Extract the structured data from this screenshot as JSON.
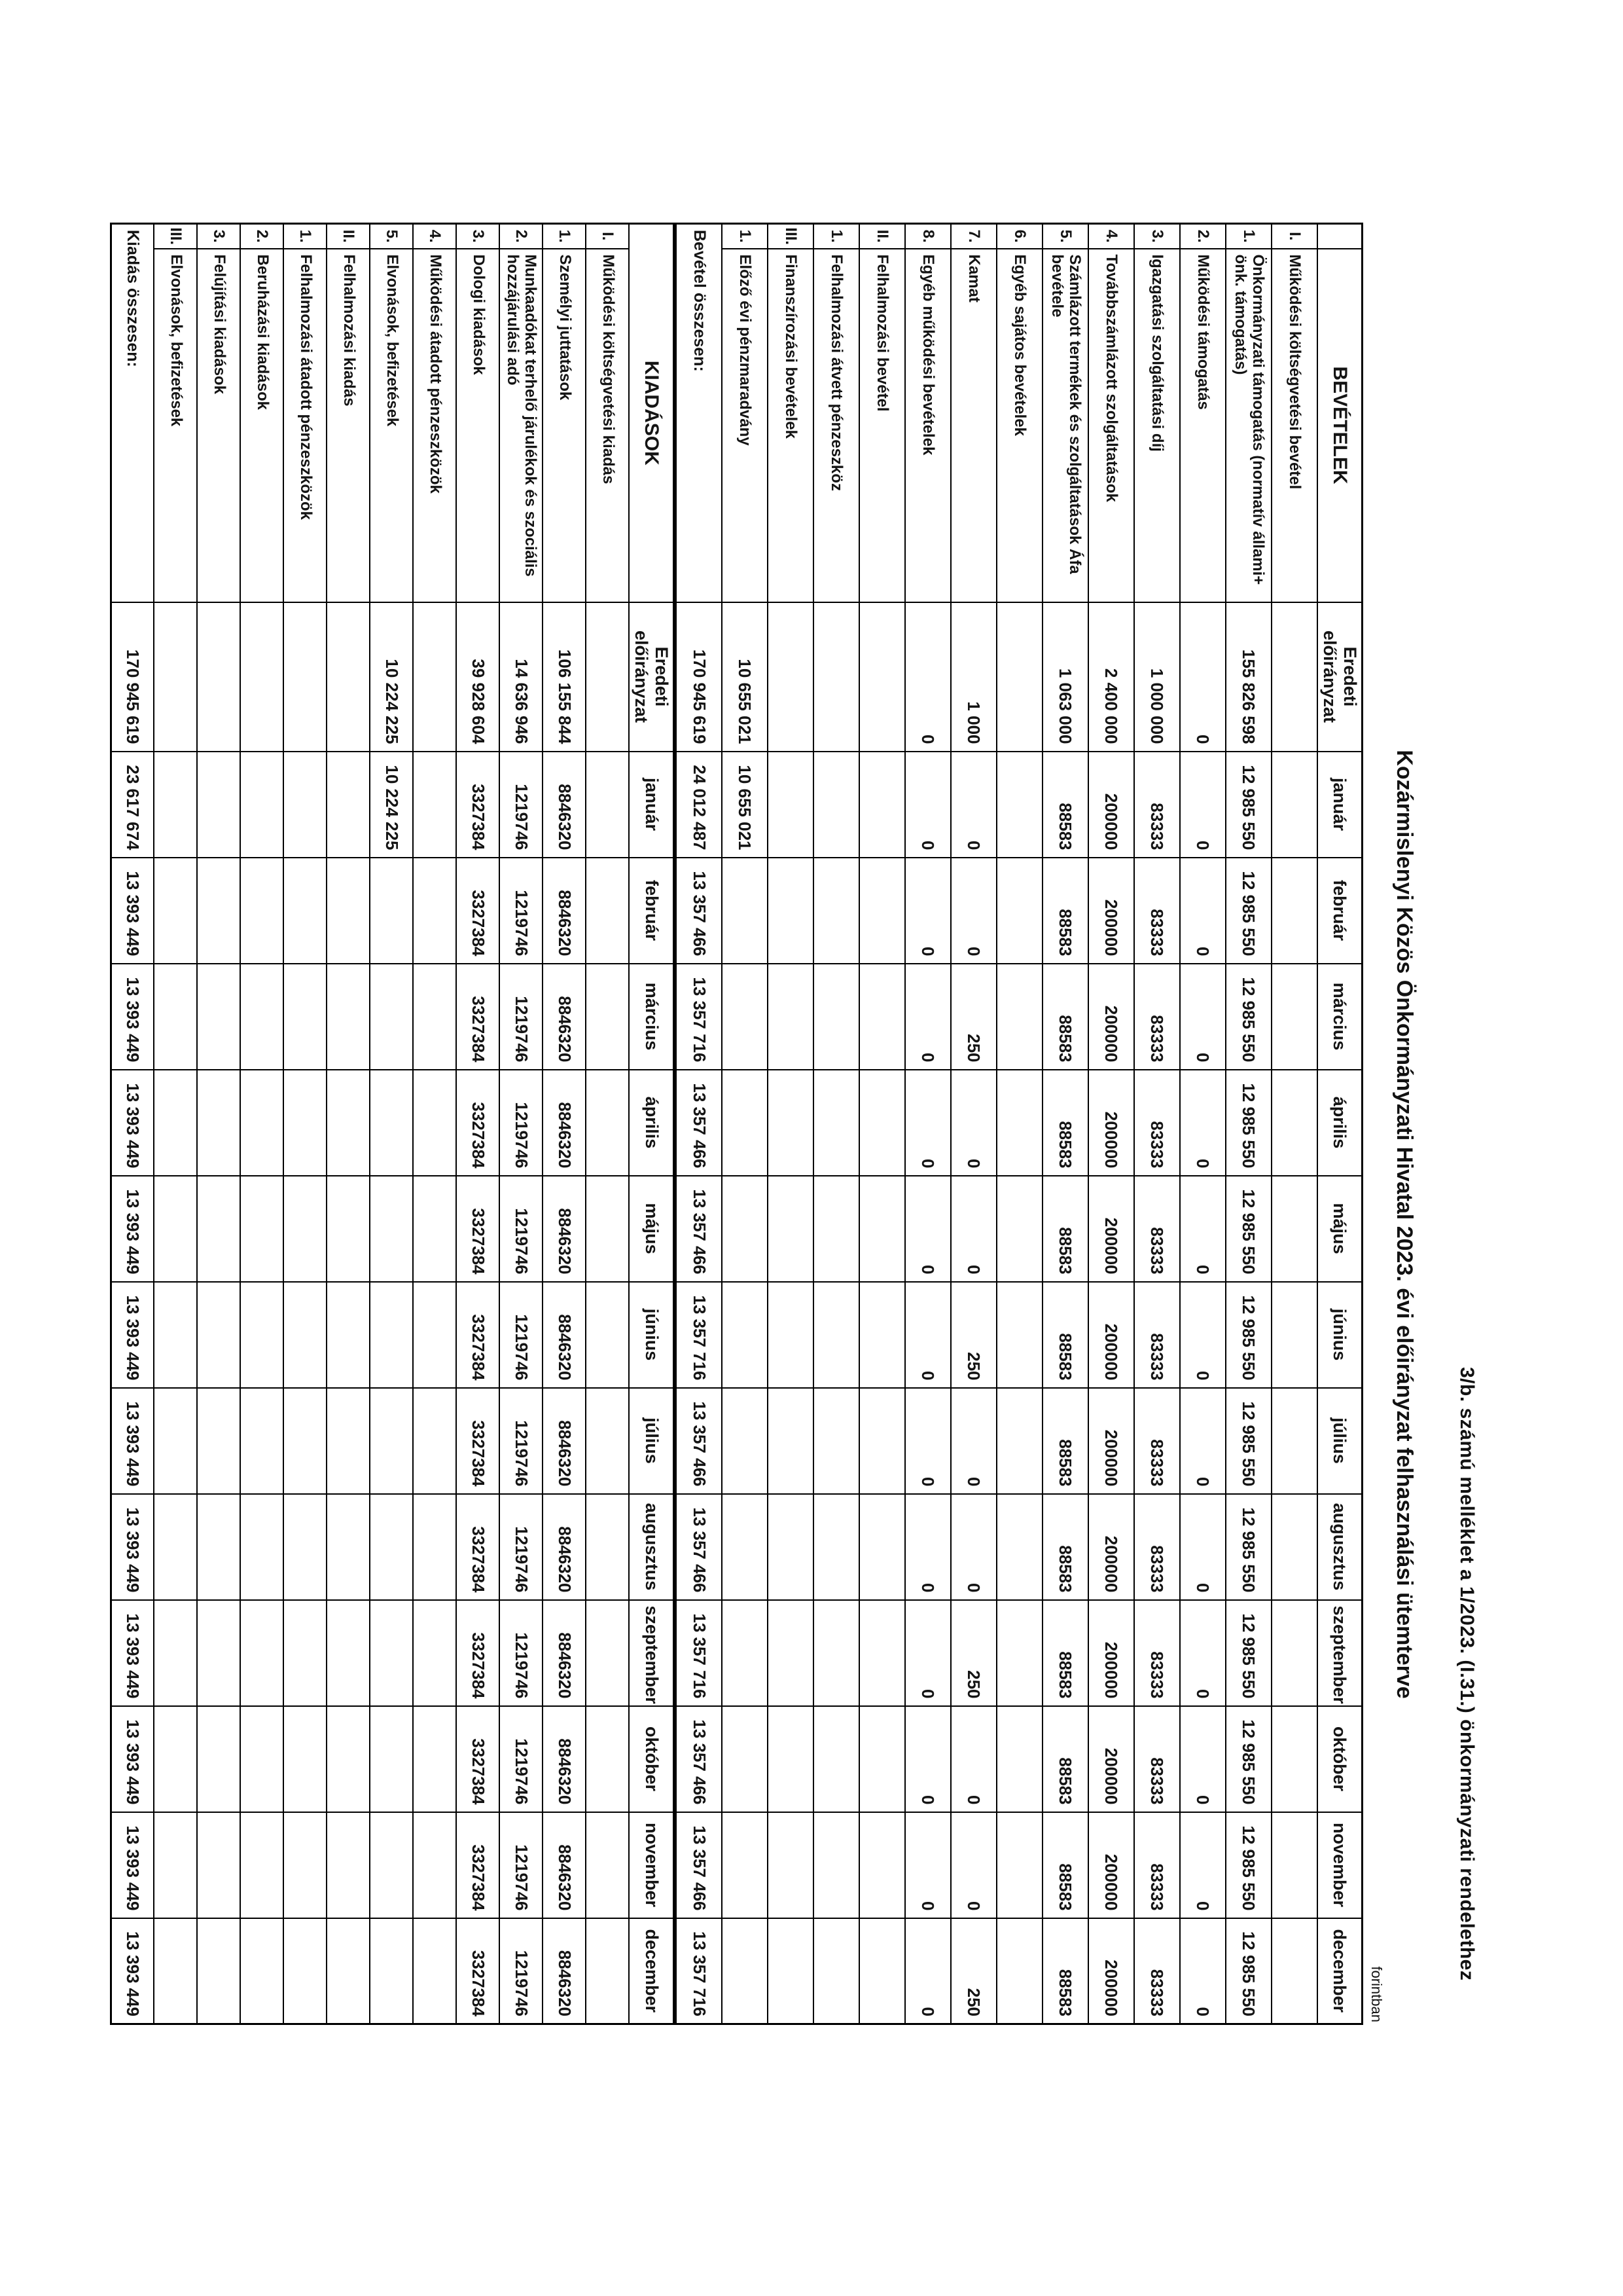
{
  "page": {
    "appendix_note": "3/b. számú melléklet a 1/2023. (I.31.) önkormányzati rendelethez",
    "title": "Kozármislenyi Közös Önkormányzati Hivatal 2023. évi előirányzat felhasználási ütemterve",
    "currency_note": "forintban"
  },
  "month_headers": [
    "január",
    "február",
    "március",
    "április",
    "május",
    "június",
    "július",
    "augusztus",
    "szeptember",
    "október",
    "november",
    "december"
  ],
  "orig_budget_header": "Eredeti előirányzat",
  "tables": [
    {
      "id": "revenues",
      "section_title": "BEVÉTELEK",
      "merged_section_header": false,
      "rows": [
        {
          "num": "I.",
          "label": "Működési költségvetési bevétel",
          "values": [
            "",
            "",
            "",
            "",
            "",
            "",
            "",
            "",
            "",
            "",
            "",
            "",
            ""
          ]
        },
        {
          "num": "1.",
          "label": "Önkormányzati támogatás (normatív állami+ önk. támogatás)",
          "values": [
            "155 826 598",
            "12 985 550",
            "12 985 550",
            "12 985 550",
            "12 985 550",
            "12 985 550",
            "12 985 550",
            "12 985 550",
            "12 985 550",
            "12 985 550",
            "12 985 550",
            "12 985 550",
            "12 985 550"
          ]
        },
        {
          "num": "2.",
          "label": "Működési támogatás",
          "values": [
            "0",
            "0",
            "0",
            "0",
            "0",
            "0",
            "0",
            "0",
            "0",
            "0",
            "0",
            "0",
            "0"
          ]
        },
        {
          "num": "3.",
          "label": "Igazgatási szolgáltatási díj",
          "values": [
            "1 000 000",
            "83333",
            "83333",
            "83333",
            "83333",
            "83333",
            "83333",
            "83333",
            "83333",
            "83333",
            "83333",
            "83333",
            "83333"
          ]
        },
        {
          "num": "4.",
          "label": "Továbbszámlázott szolgáltatások",
          "values": [
            "2 400 000",
            "200000",
            "200000",
            "200000",
            "200000",
            "200000",
            "200000",
            "200000",
            "200000",
            "200000",
            "200000",
            "200000",
            "200000"
          ]
        },
        {
          "num": "5.",
          "label": "Számlázott termékek és szolgáltatások Áfa bevétele",
          "values": [
            "1 063 000",
            "88583",
            "88583",
            "88583",
            "88583",
            "88583",
            "88583",
            "88583",
            "88583",
            "88583",
            "88583",
            "88583",
            "88583"
          ]
        },
        {
          "num": "6.",
          "label": "Egyéb sajátos bevételek",
          "values": [
            "",
            "",
            "",
            "",
            "",
            "",
            "",
            "",
            "",
            "",
            "",
            "",
            ""
          ]
        },
        {
          "num": "7.",
          "label": "Kamat",
          "values": [
            "1 000",
            "0",
            "0",
            "250",
            "0",
            "0",
            "250",
            "0",
            "0",
            "250",
            "0",
            "0",
            "250"
          ]
        },
        {
          "num": "8.",
          "label": "Egyéb működési bevételek",
          "values": [
            "0",
            "0",
            "0",
            "0",
            "0",
            "0",
            "0",
            "0",
            "0",
            "0",
            "0",
            "0",
            "0"
          ]
        },
        {
          "num": "II.",
          "label": "Felhalmozási bevétel",
          "values": [
            "",
            "",
            "",
            "",
            "",
            "",
            "",
            "",
            "",
            "",
            "",
            "",
            ""
          ]
        },
        {
          "num": "1.",
          "label": "Felhalmozási átvett pénzeszköz",
          "values": [
            "",
            "",
            "",
            "",
            "",
            "",
            "",
            "",
            "",
            "",
            "",
            "",
            ""
          ]
        },
        {
          "num": "III.",
          "label": "Finanszírozási bevételek",
          "values": [
            "",
            "",
            "",
            "",
            "",
            "",
            "",
            "",
            "",
            "",
            "",
            "",
            ""
          ]
        },
        {
          "num": "1.",
          "label": "Előző évi pénzmaradvány",
          "values": [
            "10 655 021",
            "10 655 021",
            "",
            "",
            "",
            "",
            "",
            "",
            "",
            "",
            "",
            "",
            ""
          ]
        }
      ],
      "total_row": {
        "label": "Bevétel összesen:",
        "values": [
          "170 945 619",
          "24 012 487",
          "13 357 466",
          "13 357 716",
          "13 357 466",
          "13 357 466",
          "13 357 716",
          "13 357 466",
          "13 357 466",
          "13 357 716",
          "13 357 466",
          "13 357 466",
          "13 357 716"
        ]
      }
    },
    {
      "id": "expenses",
      "section_title": "KIADÁSOK",
      "merged_section_header": true,
      "rows": [
        {
          "num": "I.",
          "label": "Működési költségvetési kiadás",
          "values": [
            "",
            "",
            "",
            "",
            "",
            "",
            "",
            "",
            "",
            "",
            "",
            "",
            ""
          ]
        },
        {
          "num": "1.",
          "label": "Személyi juttatások",
          "values": [
            "106 155 844",
            "8846320",
            "8846320",
            "8846320",
            "8846320",
            "8846320",
            "8846320",
            "8846320",
            "8846320",
            "8846320",
            "8846320",
            "8846320",
            "8846320"
          ]
        },
        {
          "num": "2.",
          "label": "Munkaadókat terhelő járulékok és szociális hozzájárulási adó",
          "values": [
            "14 636 946",
            "1219746",
            "1219746",
            "1219746",
            "1219746",
            "1219746",
            "1219746",
            "1219746",
            "1219746",
            "1219746",
            "1219746",
            "1219746",
            "1219746"
          ]
        },
        {
          "num": "3.",
          "label": "Dologi kiadások",
          "values": [
            "39 928 604",
            "3327384",
            "3327384",
            "3327384",
            "3327384",
            "3327384",
            "3327384",
            "3327384",
            "3327384",
            "3327384",
            "3327384",
            "3327384",
            "3327384"
          ]
        },
        {
          "num": "4.",
          "label": "Működési átadott pénzeszközök",
          "values": [
            "",
            "",
            "",
            "",
            "",
            "",
            "",
            "",
            "",
            "",
            "",
            "",
            ""
          ]
        },
        {
          "num": "5.",
          "label": "Elvonások, befizetések",
          "values": [
            "10 224 225",
            "10 224 225",
            "",
            "",
            "",
            "",
            "",
            "",
            "",
            "",
            "",
            "",
            ""
          ]
        },
        {
          "num": "II.",
          "label": "Felhalmozási kiadás",
          "values": [
            "",
            "",
            "",
            "",
            "",
            "",
            "",
            "",
            "",
            "",
            "",
            "",
            ""
          ]
        },
        {
          "num": "1.",
          "label": "Felhalmozási átadott pénzeszközök",
          "values": [
            "",
            "",
            "",
            "",
            "",
            "",
            "",
            "",
            "",
            "",
            "",
            "",
            ""
          ]
        },
        {
          "num": "2.",
          "label": "Beruházási kiadások",
          "values": [
            "",
            "",
            "",
            "",
            "",
            "",
            "",
            "",
            "",
            "",
            "",
            "",
            ""
          ]
        },
        {
          "num": "3.",
          "label": "Felújítási kiadások",
          "values": [
            "",
            "",
            "",
            "",
            "",
            "",
            "",
            "",
            "",
            "",
            "",
            "",
            ""
          ]
        },
        {
          "num": "III.",
          "label": "Elvonások, befizetések",
          "values": [
            "",
            "",
            "",
            "",
            "",
            "",
            "",
            "",
            "",
            "",
            "",
            "",
            ""
          ]
        }
      ],
      "total_row": {
        "label": "Kiadás összesen:",
        "values": [
          "170 945 619",
          "23 617 674",
          "13 393 449",
          "13 393 449",
          "13 393 449",
          "13 393 449",
          "13 393 449",
          "13 393 449",
          "13 393 449",
          "13 393 449",
          "13 393 449",
          "13 393 449",
          "13 393 449"
        ]
      }
    }
  ]
}
